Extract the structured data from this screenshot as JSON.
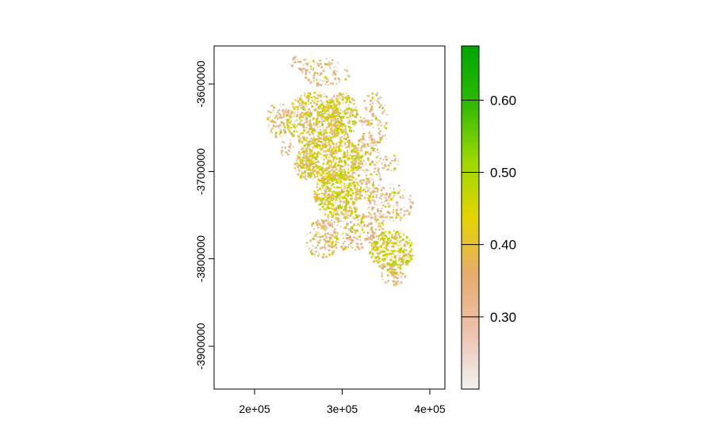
{
  "map": {
    "x_ticks": [
      {
        "value": 200000,
        "label": "2e+05"
      },
      {
        "value": 300000,
        "label": "3e+05"
      },
      {
        "value": 400000,
        "label": "4e+05"
      }
    ],
    "y_ticks": [
      {
        "value": -3600000,
        "label": "-3600000"
      },
      {
        "value": -3700000,
        "label": "-3700000"
      },
      {
        "value": -3800000,
        "label": "-3800000"
      },
      {
        "value": -3900000,
        "label": "-3900000"
      }
    ],
    "x_range": [
      153000,
      417000
    ],
    "y_range": [
      -3950000,
      -3555000
    ]
  },
  "legend": {
    "range": [
      0.2,
      0.675
    ],
    "ticks": [
      {
        "value": 0.3,
        "label": "0.30"
      },
      {
        "value": 0.4,
        "label": "0.40"
      },
      {
        "value": 0.5,
        "label": "0.50"
      },
      {
        "value": 0.6,
        "label": "0.60"
      }
    ],
    "colors": [
      "#f2f2f2",
      "#ecc2ad",
      "#e6ac6d",
      "#e4d400",
      "#9cd800",
      "#2dbb00",
      "#00a600"
    ]
  }
}
